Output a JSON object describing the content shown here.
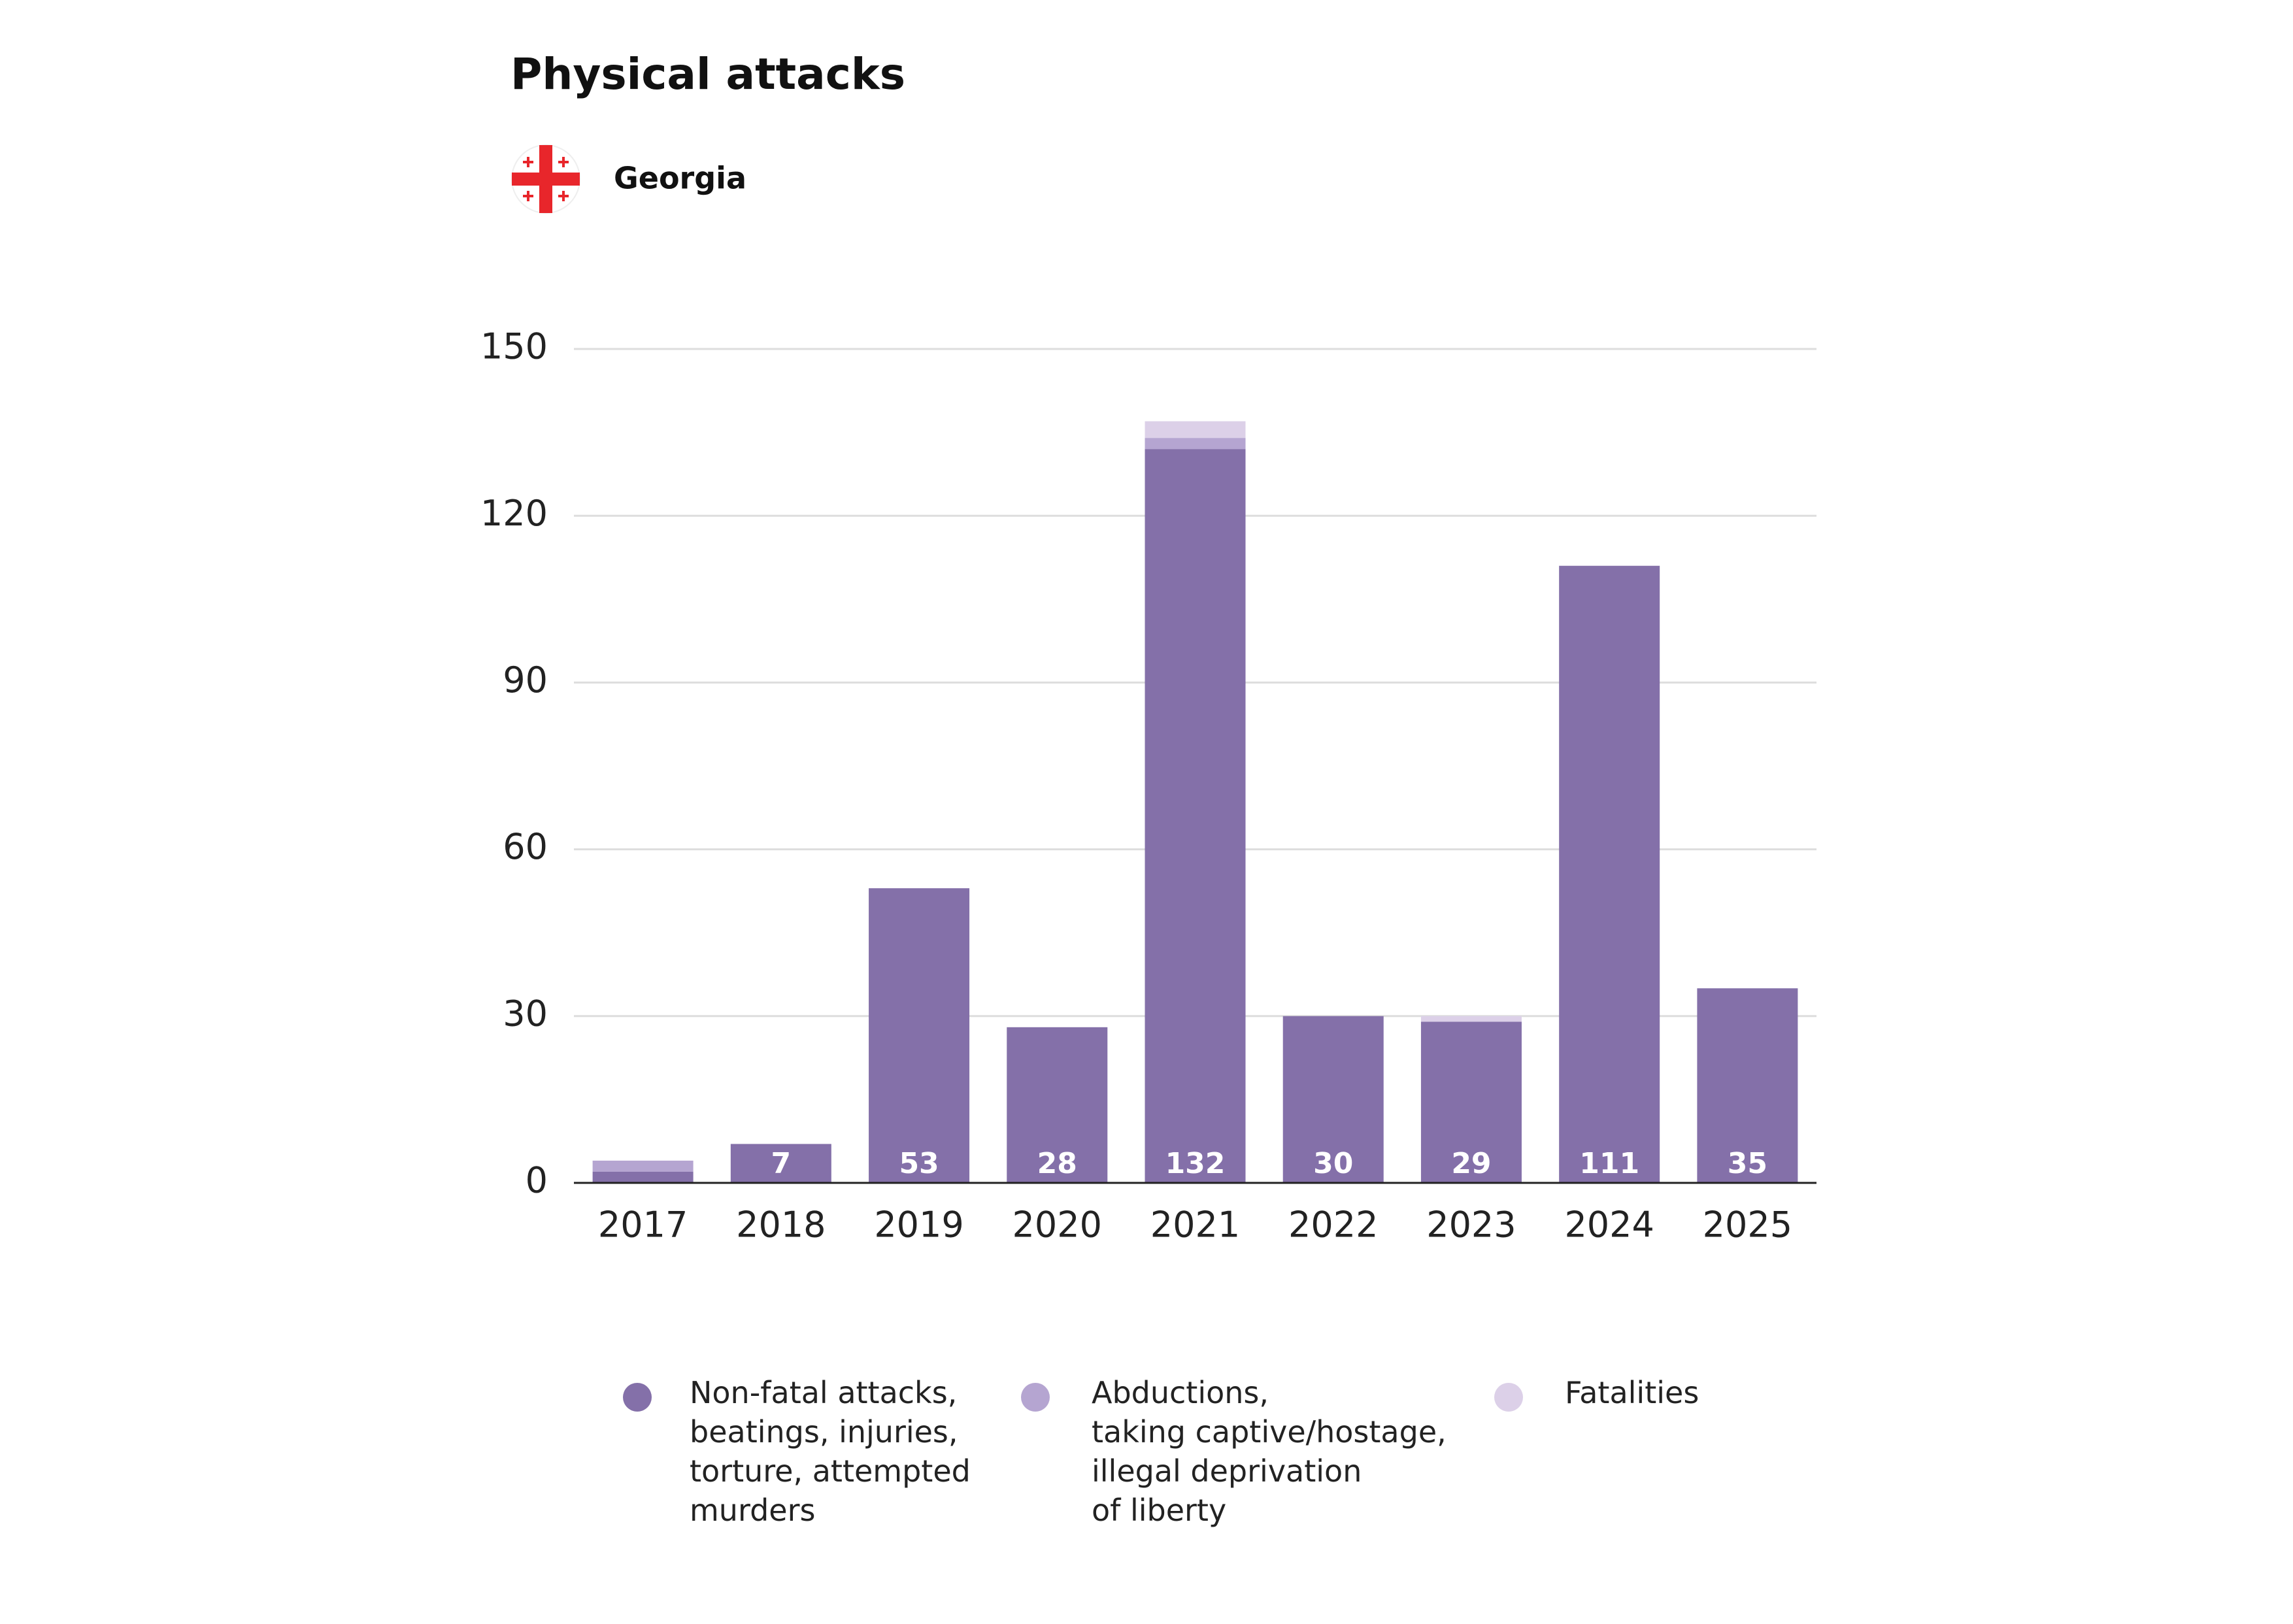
{
  "chart_data": {
    "type": "stacked_bar",
    "title": "Physical attacks",
    "subtitle": "Georgia",
    "categories": [
      "2017",
      "2018",
      "2019",
      "2020",
      "2021",
      "2022",
      "2023",
      "2024",
      "2025"
    ],
    "series": [
      {
        "name": "Non-fatal attacks,\nbeatings, injuries,\ntorture, attempted\nmurders",
        "color": "#8470a9",
        "values": [
          2,
          7,
          53,
          28,
          132,
          30,
          29,
          111,
          35
        ],
        "value_labels": [
          null,
          "7",
          "53",
          "28",
          "132",
          "30",
          "29",
          "111",
          "35"
        ]
      },
      {
        "name": "Abductions,\ntaking captive/hostage,\nillegal deprivation\nof liberty",
        "color": "#b5a5d1",
        "values": [
          2,
          0,
          0,
          0,
          2,
          0,
          0,
          0,
          0
        ]
      },
      {
        "name": "Fatalities",
        "color": "#dcd0e8",
        "values": [
          0,
          0,
          0,
          0,
          3,
          0,
          1,
          0,
          0
        ]
      }
    ],
    "ylim": [
      0,
      150
    ],
    "yticks": [
      0,
      30,
      60,
      90,
      120,
      150
    ],
    "grid": true
  }
}
